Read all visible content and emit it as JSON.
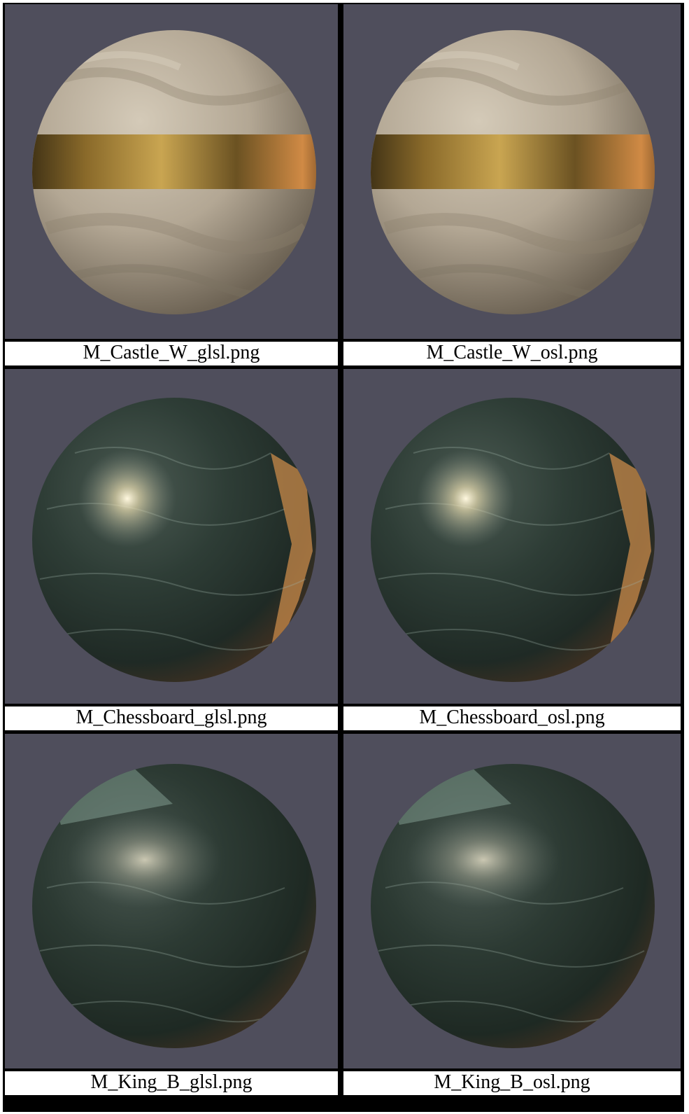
{
  "rows": [
    {
      "left": {
        "caption": "M_Castle_W_glsl.png",
        "material": "castle-white"
      },
      "right": {
        "caption": "M_Castle_W_osl.png",
        "material": "castle-white"
      }
    },
    {
      "left": {
        "caption": "M_Chessboard_glsl.png",
        "material": "chessboard-dark-marble"
      },
      "right": {
        "caption": "M_Chessboard_osl.png",
        "material": "chessboard-dark-marble"
      }
    },
    {
      "left": {
        "caption": "M_King_B_glsl.png",
        "material": "king-black-marble"
      },
      "right": {
        "caption": "M_King_B_osl.png",
        "material": "king-black-marble"
      }
    }
  ],
  "colors": {
    "background": "#4f4e5c",
    "grid_lines": "#000000",
    "caption_bg": "#ffffff",
    "stone_light": "#c7bcaa",
    "stone_dark": "#6f6455",
    "gold_band": "#9a7a36",
    "marble_dark": "#25332d",
    "marble_mid": "#3c4b43",
    "copper_rim": "#c88a4a"
  }
}
